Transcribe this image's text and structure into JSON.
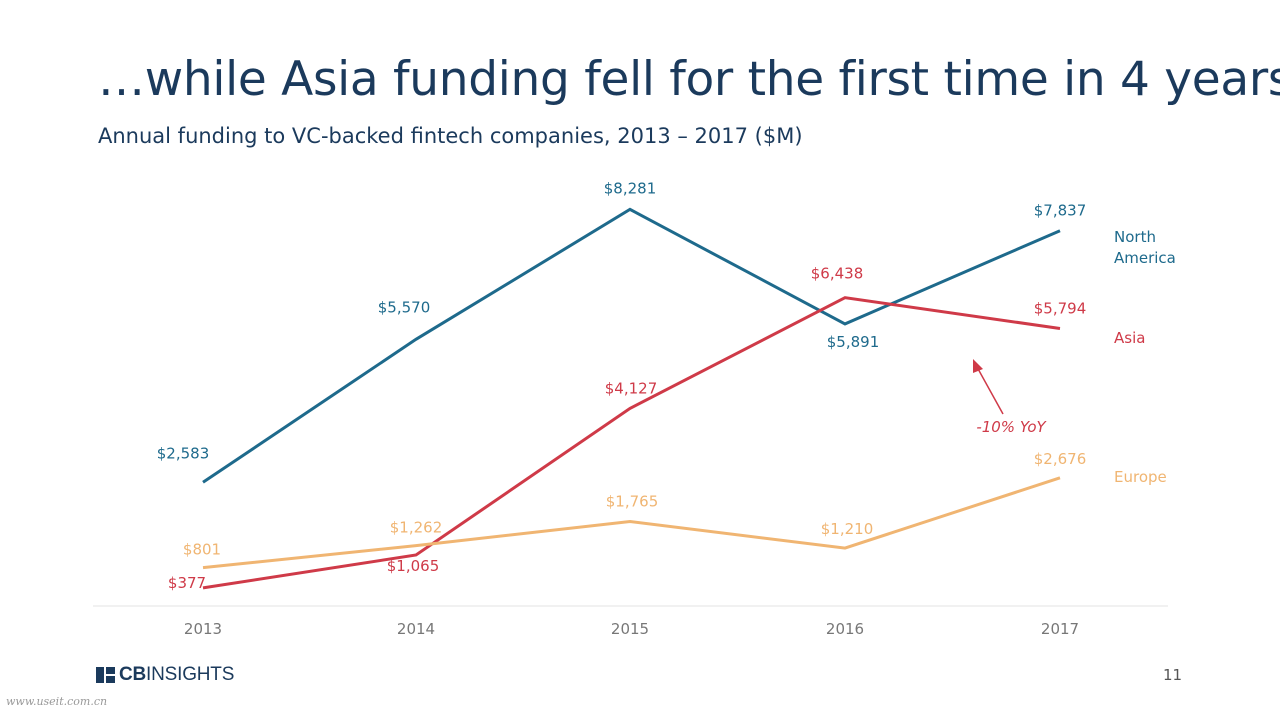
{
  "title": "…while Asia funding fell for the first time in 4 years",
  "subtitle": "Annual funding to VC-backed fintech companies, 2013 – 2017 ($M)",
  "page_number": "11",
  "logo": {
    "prefix": "CB",
    "suffix": "INSIGHTS"
  },
  "watermark": "www.useit.com.cn",
  "colors": {
    "north_america": "#1e6a8c",
    "asia": "#cf3a48",
    "europe": "#f0b572",
    "title": "#1b3a5c"
  },
  "chart_data": {
    "type": "line",
    "x": [
      "2013",
      "2014",
      "2015",
      "2016",
      "2017"
    ],
    "ylim": [
      0,
      9000
    ],
    "grid": false,
    "series": [
      {
        "name": "North America",
        "name_lines": [
          "North",
          "America"
        ],
        "values": [
          2583,
          5570,
          8281,
          5891,
          7837
        ],
        "labels": [
          "$2,583",
          "$5,570",
          "$8,281",
          "$5,891",
          "$7,837"
        ]
      },
      {
        "name": "Asia",
        "name_lines": [
          "Asia"
        ],
        "values": [
          377,
          1065,
          4127,
          6438,
          5794
        ],
        "labels": [
          "$377",
          "$1,065",
          "$4,127",
          "$6,438",
          "$5,794"
        ]
      },
      {
        "name": "Europe",
        "name_lines": [
          "Europe"
        ],
        "values": [
          801,
          1262,
          1765,
          1210,
          2676
        ],
        "labels": [
          "$801",
          "$1,262",
          "$1,765",
          "$1,210",
          "$2,676"
        ]
      }
    ],
    "annotations": [
      {
        "text": "-10% YoY",
        "series": "Asia",
        "x": "2017"
      }
    ]
  }
}
